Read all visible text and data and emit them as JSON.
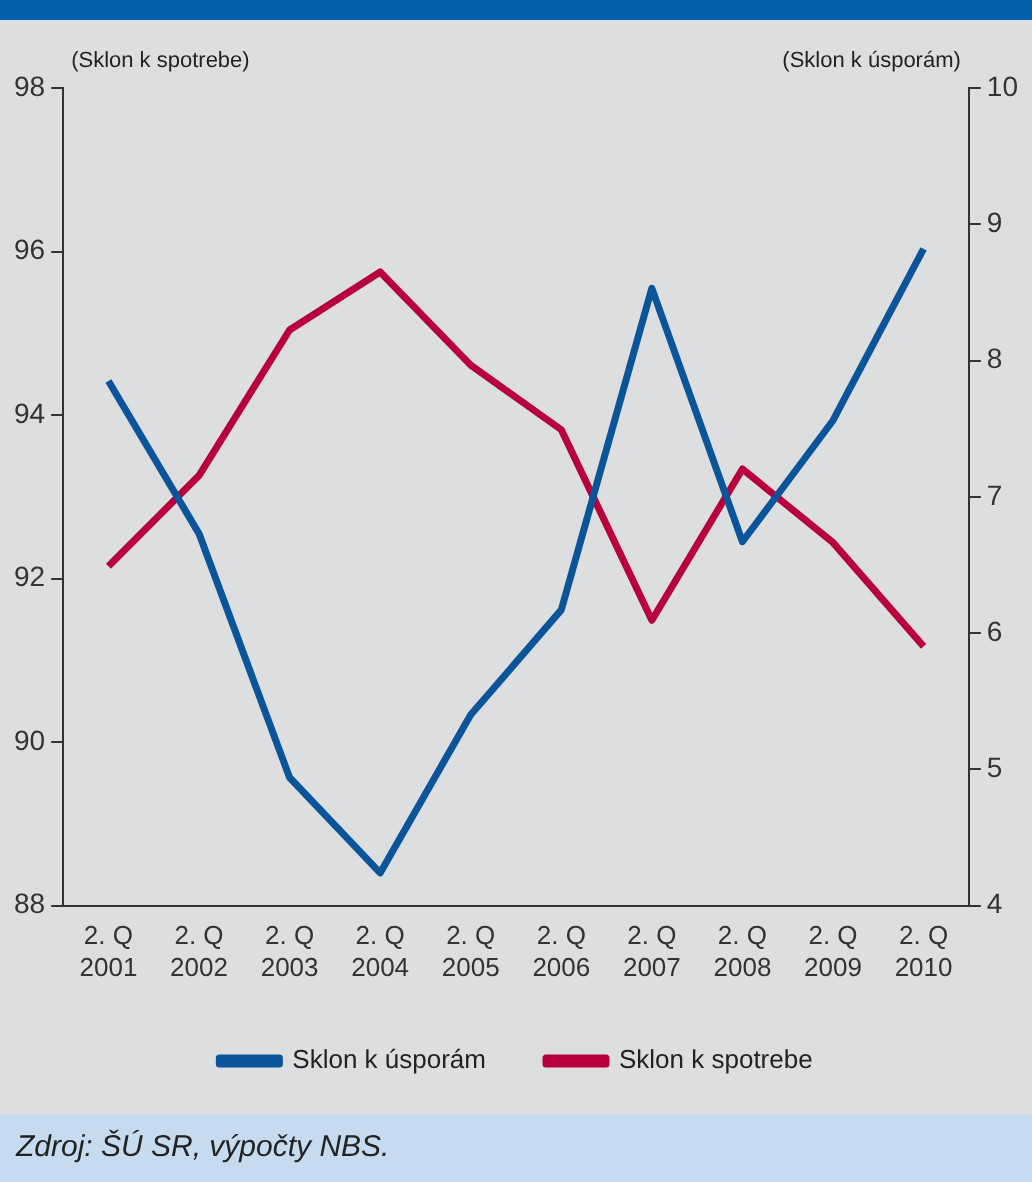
{
  "chart_data": {
    "type": "line",
    "ylabel": "(Sklon k spotrebe)",
    "y2label": "(Sklon k úsporám)",
    "categories": [
      "2. Q\n2001",
      "2. Q\n2002",
      "2. Q\n2003",
      "2. Q\n2004",
      "2. Q\n2005",
      "2. Q\n2006",
      "2. Q\n2007",
      "2. Q\n2008",
      "2. Q\n2009",
      "2. Q\n2010"
    ],
    "series": [
      {
        "name": "Sklon k úsporám",
        "color": "#0a5499",
        "axis": "y2",
        "values": [
          7.85,
          6.73,
          4.94,
          4.24,
          5.4,
          6.17,
          8.53,
          6.67,
          7.56,
          8.82
        ]
      },
      {
        "name": "Sklon k spotrebe",
        "color": "#b8003c",
        "values": [
          92.15,
          93.26,
          95.04,
          95.75,
          94.61,
          93.82,
          91.49,
          93.34,
          92.44,
          91.17
        ]
      }
    ],
    "ylim": [
      88,
      98
    ],
    "yticks": [
      88,
      90,
      92,
      94,
      96,
      98
    ],
    "y2lim": [
      4,
      10
    ],
    "y2ticks": [
      4,
      5,
      6,
      7,
      8,
      9,
      10
    ],
    "grid": false,
    "legend": "bottom",
    "marker": "none",
    "line_style": "solid",
    "annotations": [
      "Zdroj: ŠÚ SR, výpočty NBS."
    ]
  }
}
